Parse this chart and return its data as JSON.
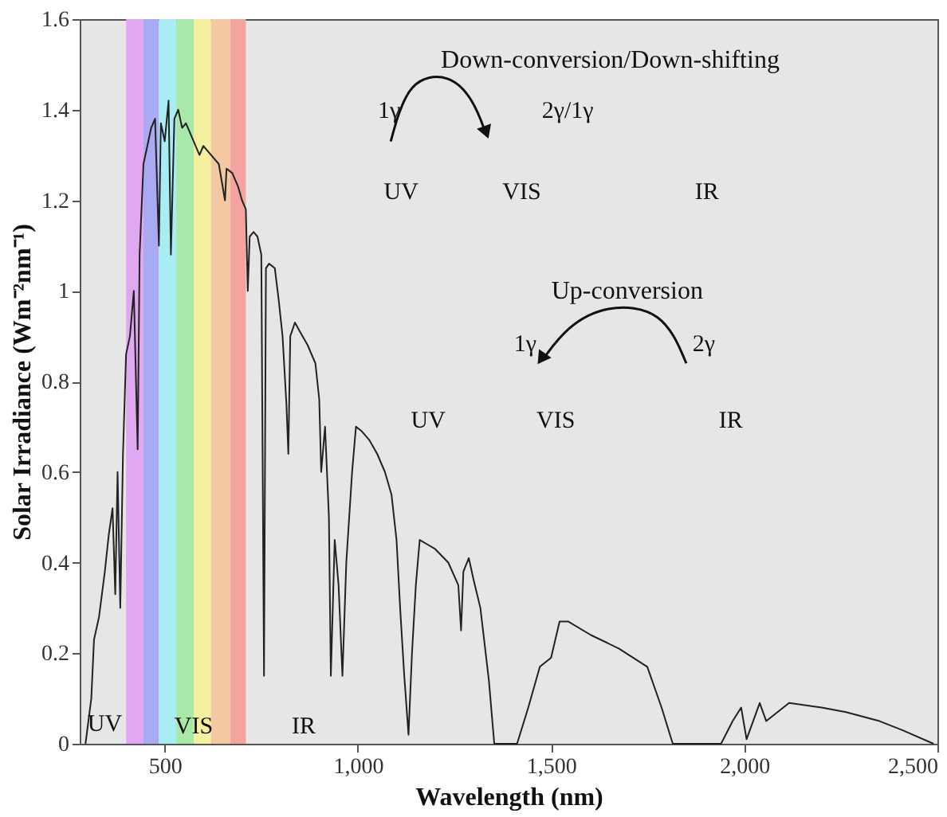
{
  "chart_data": {
    "type": "line",
    "xlabel": "Wavelength (nm)",
    "ylabel": "Solar Irradiance (Wm⁻²nm⁻¹)",
    "xlim": [
      280,
      2500
    ],
    "ylim": [
      0,
      1.6
    ],
    "xticks": [
      500,
      {
        "value": 1000,
        "label": "1,000"
      },
      {
        "value": 1500,
        "label": "1,500"
      },
      {
        "value": 2000,
        "label": "2,000"
      },
      {
        "value": 2500,
        "label": "2,500"
      }
    ],
    "yticks": [
      0,
      0.2,
      0.4,
      0.6,
      0.8,
      1,
      1.2,
      1.4,
      1.6
    ],
    "series": [
      {
        "color": "#222222",
        "line_style": "solid",
        "marker": "none",
        "x": [
          295,
          310,
          317,
          330,
          345,
          355,
          365,
          372,
          378,
          385,
          392,
          400,
          410,
          420,
          430,
          435,
          445,
          455,
          465,
          475,
          485,
          490,
          500,
          510,
          516,
          525,
          535,
          545,
          555,
          565,
          575,
          590,
          600,
          620,
          640,
          656,
          660,
          675,
          690,
          700,
          710,
          715,
          720,
          730,
          740,
          750,
          757,
          762,
          770,
          785,
          795,
          805,
          815,
          820,
          825,
          837,
          850,
          870,
          890,
          900,
          905,
          915,
          925,
          930,
          940,
          950,
          960,
          970,
          985,
          995,
          1010,
          1030,
          1050,
          1070,
          1087,
          1100,
          1110,
          1120,
          1131,
          1140,
          1150,
          1160,
          1180,
          1200,
          1234,
          1260,
          1267,
          1273,
          1287,
          1300,
          1317,
          1339,
          1353,
          1412,
          1441,
          1471,
          1500,
          1522,
          1544,
          1603,
          1676,
          1749,
          1786,
          1815,
          1940,
          1970,
          1992,
          2006,
          2040,
          2057,
          2116,
          2200,
          2263,
          2350,
          2409,
          2490
        ],
        "values": [
          0.0,
          0.1,
          0.23,
          0.28,
          0.38,
          0.46,
          0.52,
          0.33,
          0.6,
          0.3,
          0.64,
          0.86,
          0.9,
          1.0,
          0.65,
          1.08,
          1.28,
          1.32,
          1.36,
          1.38,
          1.1,
          1.37,
          1.33,
          1.42,
          1.08,
          1.38,
          1.4,
          1.36,
          1.37,
          1.35,
          1.33,
          1.3,
          1.32,
          1.3,
          1.28,
          1.2,
          1.27,
          1.26,
          1.23,
          1.2,
          1.18,
          1.0,
          1.12,
          1.13,
          1.12,
          1.08,
          0.15,
          1.05,
          1.06,
          1.05,
          0.98,
          0.9,
          0.75,
          0.64,
          0.9,
          0.93,
          0.91,
          0.88,
          0.84,
          0.76,
          0.6,
          0.7,
          0.5,
          0.15,
          0.45,
          0.35,
          0.15,
          0.4,
          0.6,
          0.7,
          0.69,
          0.67,
          0.64,
          0.6,
          0.55,
          0.45,
          0.29,
          0.15,
          0.02,
          0.2,
          0.35,
          0.45,
          0.44,
          0.43,
          0.4,
          0.35,
          0.25,
          0.38,
          0.41,
          0.36,
          0.3,
          0.14,
          0.0,
          0.0,
          0.08,
          0.17,
          0.19,
          0.27,
          0.27,
          0.24,
          0.21,
          0.17,
          0.08,
          0.0,
          0.0,
          0.05,
          0.08,
          0.01,
          0.09,
          0.05,
          0.09,
          0.08,
          0.07,
          0.05,
          0.03,
          0.0
        ]
      }
    ],
    "bands": [
      {
        "axis": "x",
        "from": 400,
        "to": 445,
        "color": "#e0a8f0"
      },
      {
        "axis": "x",
        "from": 445,
        "to": 485,
        "color": "#aaaaf2"
      },
      {
        "axis": "x",
        "from": 485,
        "to": 530,
        "color": "#a8ecf4"
      },
      {
        "axis": "x",
        "from": 530,
        "to": 575,
        "color": "#a8e8a8"
      },
      {
        "axis": "x",
        "from": 575,
        "to": 620,
        "color": "#f4f0a0"
      },
      {
        "axis": "x",
        "from": 620,
        "to": 670,
        "color": "#f4c8a0"
      },
      {
        "axis": "x",
        "from": 670,
        "to": 710,
        "color": "#f4a4a0"
      }
    ],
    "annotations": [
      "UV",
      "VIS",
      "IR",
      "Down-conversion/Down-shifting",
      "1γ",
      "2γ/1γ",
      "UV",
      "VIS",
      "IR",
      "Up-conversion",
      "1γ",
      "2γ",
      "UV",
      "VIS",
      "IR"
    ]
  }
}
